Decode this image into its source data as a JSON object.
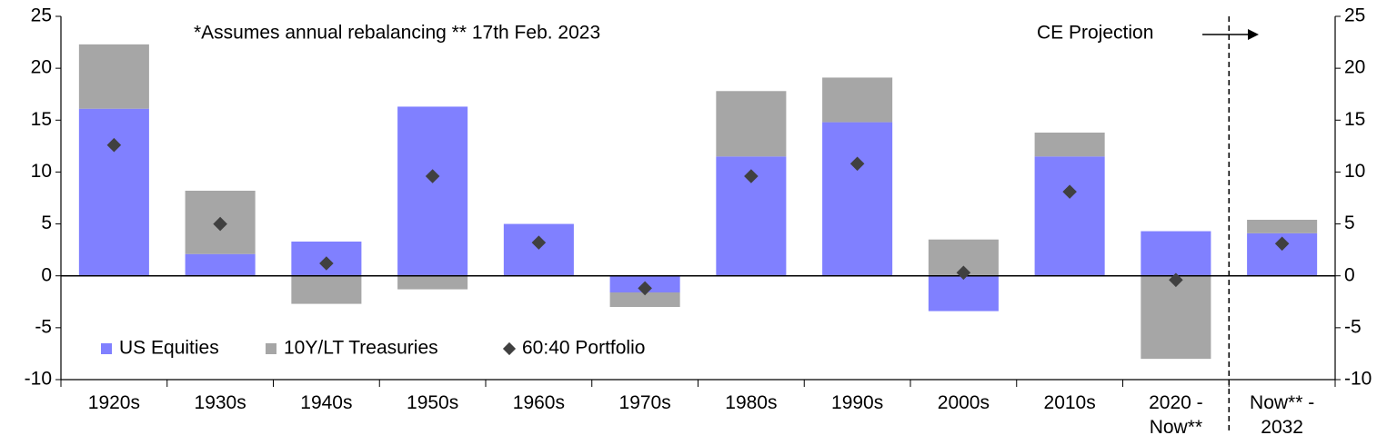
{
  "chart_data": {
    "type": "stacked_bar",
    "annotations": [
      "*Assumes annual rebalancing   ** 17th Feb. 2023",
      "CE Projection"
    ],
    "categories": [
      "1920s",
      "1930s",
      "1940s",
      "1950s",
      "1960s",
      "1970s",
      "1980s",
      "1990s",
      "2000s",
      "2010s",
      "2020 -\nNow**",
      "Now** -\n2032"
    ],
    "series": [
      {
        "name": "US Equities",
        "color": "#8080ff",
        "kind": "bar",
        "values": [
          16.1,
          2.1,
          3.3,
          16.3,
          5.0,
          -1.6,
          11.5,
          14.8,
          -3.4,
          11.5,
          4.3,
          4.1
        ]
      },
      {
        "name": "10Y/LT Treasuries",
        "color": "#a6a6a6",
        "kind": "bar",
        "values": [
          6.2,
          6.1,
          -2.7,
          -1.3,
          0,
          -1.4,
          6.3,
          4.3,
          3.5,
          2.3,
          -8.0,
          1.3
        ]
      },
      {
        "name": "60:40 Portfolio",
        "color": "#404040",
        "kind": "diamond",
        "values": [
          12.6,
          5.0,
          1.2,
          9.6,
          3.2,
          -1.2,
          9.6,
          10.8,
          0.3,
          8.1,
          -0.4,
          3.1
        ]
      }
    ],
    "ylim": [
      -10,
      25
    ],
    "yticks": [
      -10,
      -5,
      0,
      5,
      10,
      15,
      20,
      25
    ],
    "y2lim": [
      -10,
      25
    ],
    "y2ticks": [
      -10,
      -5,
      0,
      5,
      10,
      15,
      20,
      25
    ],
    "legend": "lower left"
  }
}
